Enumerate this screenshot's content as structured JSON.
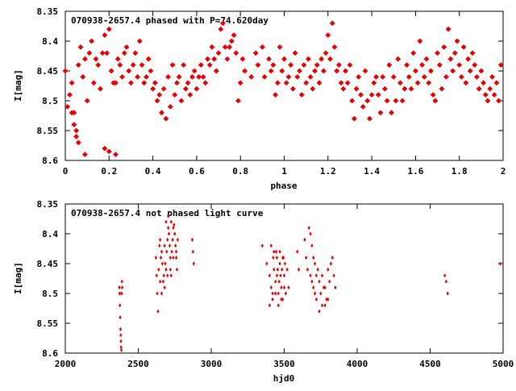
{
  "chart_data": [
    {
      "type": "scatter",
      "title": "070938-2657.4 phased with P=74.620day",
      "xlabel": "phase",
      "ylabel": "I[mag]",
      "xlim": [
        0,
        2
      ],
      "ylim": [
        8.6,
        8.35
      ],
      "y_inverted": true,
      "grid": false,
      "xticks": [
        "0",
        "0.2",
        "0.4",
        "0.6",
        "0.8",
        "1",
        "1.2",
        "1.4",
        "1.6",
        "1.8",
        "2"
      ],
      "yticks": [
        "8.35",
        "8.4",
        "8.45",
        "8.5",
        "8.55",
        "8.6"
      ],
      "marker_color": "#e60000",
      "marker": "star",
      "points": [
        [
          0.0,
          8.45
        ],
        [
          0.01,
          8.51
        ],
        [
          0.02,
          8.49
        ],
        [
          0.03,
          8.47
        ],
        [
          0.04,
          8.52
        ],
        [
          0.05,
          8.55
        ],
        [
          0.06,
          8.44
        ],
        [
          0.06,
          8.57
        ],
        [
          0.07,
          8.41
        ],
        [
          0.08,
          8.46
        ],
        [
          0.09,
          8.43
        ],
        [
          0.1,
          8.5
        ],
        [
          0.11,
          8.42
        ],
        [
          0.12,
          8.4
        ],
        [
          0.13,
          8.47
        ],
        [
          0.14,
          8.43
        ],
        [
          0.15,
          8.44
        ],
        [
          0.16,
          8.48
        ],
        [
          0.17,
          8.42
        ],
        [
          0.18,
          8.39
        ],
        [
          0.19,
          8.42
        ],
        [
          0.2,
          8.38
        ],
        [
          0.21,
          8.45
        ],
        [
          0.22,
          8.47
        ],
        [
          0.23,
          8.47
        ],
        [
          0.24,
          8.43
        ],
        [
          0.25,
          8.44
        ],
        [
          0.26,
          8.46
        ],
        [
          0.27,
          8.42
        ],
        [
          0.28,
          8.41
        ],
        [
          0.29,
          8.45
        ],
        [
          0.3,
          8.47
        ],
        [
          0.31,
          8.44
        ],
        [
          0.32,
          8.42
        ],
        [
          0.33,
          8.46
        ],
        [
          0.34,
          8.4
        ],
        [
          0.35,
          8.44
        ],
        [
          0.36,
          8.47
        ],
        [
          0.37,
          8.46
        ],
        [
          0.38,
          8.43
        ],
        [
          0.39,
          8.45
        ],
        [
          0.4,
          8.48
        ],
        [
          0.41,
          8.47
        ],
        [
          0.42,
          8.5
        ],
        [
          0.43,
          8.49
        ],
        [
          0.44,
          8.52
        ],
        [
          0.45,
          8.48
        ],
        [
          0.46,
          8.53
        ],
        [
          0.47,
          8.46
        ],
        [
          0.48,
          8.51
        ],
        [
          0.49,
          8.44
        ],
        [
          0.5,
          8.49
        ],
        [
          0.51,
          8.47
        ],
        [
          0.52,
          8.46
        ],
        [
          0.53,
          8.5
        ],
        [
          0.54,
          8.44
        ],
        [
          0.55,
          8.48
        ],
        [
          0.56,
          8.47
        ],
        [
          0.57,
          8.49
        ],
        [
          0.58,
          8.46
        ],
        [
          0.59,
          8.45
        ],
        [
          0.6,
          8.48
        ],
        [
          0.61,
          8.46
        ],
        [
          0.62,
          8.44
        ],
        [
          0.63,
          8.46
        ],
        [
          0.64,
          8.47
        ],
        [
          0.65,
          8.43
        ],
        [
          0.66,
          8.44
        ],
        [
          0.67,
          8.41
        ],
        [
          0.68,
          8.43
        ],
        [
          0.69,
          8.45
        ],
        [
          0.7,
          8.42
        ],
        [
          0.71,
          8.38
        ],
        [
          0.72,
          8.37
        ],
        [
          0.73,
          8.41
        ],
        [
          0.74,
          8.43
        ],
        [
          0.75,
          8.41
        ],
        [
          0.76,
          8.4
        ],
        [
          0.77,
          8.39
        ],
        [
          0.78,
          8.42
        ],
        [
          0.79,
          8.5
        ],
        [
          0.8,
          8.47
        ],
        [
          0.81,
          8.43
        ],
        [
          0.82,
          8.45
        ],
        [
          0.85,
          8.46
        ],
        [
          0.87,
          8.42
        ],
        [
          0.88,
          8.44
        ],
        [
          0.9,
          8.41
        ],
        [
          0.91,
          8.46
        ],
        [
          0.93,
          8.43
        ],
        [
          0.94,
          8.45
        ],
        [
          0.95,
          8.44
        ],
        [
          0.96,
          8.49
        ],
        [
          0.97,
          8.47
        ],
        [
          0.98,
          8.41
        ],
        [
          0.99,
          8.45
        ],
        [
          1.0,
          8.43
        ],
        [
          1.01,
          8.47
        ],
        [
          1.02,
          8.46
        ],
        [
          1.03,
          8.44
        ],
        [
          1.04,
          8.48
        ],
        [
          1.05,
          8.42
        ],
        [
          1.06,
          8.46
        ],
        [
          1.07,
          8.45
        ],
        [
          1.08,
          8.49
        ],
        [
          1.09,
          8.44
        ],
        [
          1.1,
          8.47
        ],
        [
          1.11,
          8.43
        ],
        [
          1.12,
          8.46
        ],
        [
          1.13,
          8.48
        ],
        [
          1.14,
          8.45
        ],
        [
          1.15,
          8.44
        ],
        [
          1.16,
          8.47
        ],
        [
          1.17,
          8.43
        ],
        [
          1.18,
          8.45
        ],
        [
          1.19,
          8.42
        ],
        [
          1.2,
          8.39
        ],
        [
          1.21,
          8.43
        ],
        [
          1.22,
          8.37
        ],
        [
          1.23,
          8.41
        ],
        [
          1.24,
          8.45
        ],
        [
          1.25,
          8.44
        ],
        [
          1.26,
          8.47
        ],
        [
          1.27,
          8.48
        ],
        [
          1.28,
          8.45
        ],
        [
          1.29,
          8.47
        ],
        [
          1.3,
          8.44
        ],
        [
          1.31,
          8.5
        ],
        [
          1.32,
          8.53
        ],
        [
          1.33,
          8.48
        ],
        [
          1.34,
          8.46
        ],
        [
          1.35,
          8.49
        ],
        [
          1.36,
          8.51
        ],
        [
          1.37,
          8.45
        ],
        [
          1.38,
          8.5
        ],
        [
          1.39,
          8.53
        ],
        [
          1.4,
          8.49
        ],
        [
          1.41,
          8.47
        ],
        [
          1.42,
          8.46
        ],
        [
          1.43,
          8.49
        ],
        [
          1.44,
          8.52
        ],
        [
          1.45,
          8.46
        ],
        [
          1.46,
          8.48
        ],
        [
          1.47,
          8.5
        ],
        [
          1.48,
          8.44
        ],
        [
          1.49,
          8.52
        ],
        [
          1.5,
          8.46
        ],
        [
          1.51,
          8.5
        ],
        [
          1.52,
          8.43
        ],
        [
          1.53,
          8.47
        ],
        [
          1.54,
          8.5
        ],
        [
          1.55,
          8.48
        ],
        [
          1.56,
          8.44
        ],
        [
          1.57,
          8.46
        ],
        [
          1.58,
          8.48
        ],
        [
          1.59,
          8.42
        ],
        [
          1.6,
          8.45
        ],
        [
          1.61,
          8.47
        ],
        [
          1.62,
          8.4
        ],
        [
          1.63,
          8.44
        ],
        [
          1.64,
          8.46
        ],
        [
          1.65,
          8.43
        ],
        [
          1.66,
          8.47
        ],
        [
          1.67,
          8.45
        ],
        [
          1.68,
          8.49
        ],
        [
          1.69,
          8.5
        ],
        [
          1.7,
          8.42
        ],
        [
          1.71,
          8.44
        ],
        [
          1.72,
          8.48
        ],
        [
          1.73,
          8.41
        ],
        [
          1.74,
          8.46
        ],
        [
          1.75,
          8.38
        ],
        [
          1.76,
          8.43
        ],
        [
          1.77,
          8.45
        ],
        [
          1.78,
          8.42
        ],
        [
          1.79,
          8.4
        ],
        [
          1.8,
          8.44
        ],
        [
          1.81,
          8.46
        ],
        [
          1.82,
          8.41
        ],
        [
          1.83,
          8.47
        ],
        [
          1.84,
          8.43
        ],
        [
          1.85,
          8.45
        ],
        [
          1.86,
          8.42
        ],
        [
          1.87,
          8.44
        ],
        [
          1.88,
          8.46
        ],
        [
          1.89,
          8.48
        ],
        [
          1.9,
          8.45
        ],
        [
          1.91,
          8.47
        ],
        [
          1.92,
          8.49
        ],
        [
          1.93,
          8.5
        ],
        [
          1.94,
          8.48
        ],
        [
          1.95,
          8.46
        ],
        [
          1.96,
          8.49
        ],
        [
          1.97,
          8.47
        ],
        [
          1.98,
          8.5
        ],
        [
          1.99,
          8.44
        ],
        [
          0.03,
          8.52
        ],
        [
          0.04,
          8.54
        ],
        [
          0.05,
          8.56
        ],
        [
          0.09,
          8.59
        ],
        [
          0.18,
          8.58
        ],
        [
          0.2,
          8.585
        ],
        [
          0.23,
          8.59
        ]
      ]
    },
    {
      "type": "scatter",
      "title": "070938-2657.4 not phased light curve",
      "xlabel": "hjd0",
      "ylabel": "I[mag]",
      "xlim": [
        2000,
        5000
      ],
      "ylim": [
        8.6,
        8.35
      ],
      "y_inverted": true,
      "grid": false,
      "xticks": [
        "2000",
        "2500",
        "3000",
        "3500",
        "4000",
        "4500",
        "5000"
      ],
      "yticks": [
        "8.35",
        "8.4",
        "8.45",
        "8.5",
        "8.55",
        "8.6"
      ],
      "marker_color": "#e60000",
      "marker": "diamond",
      "points": [
        [
          2370,
          8.49
        ],
        [
          2372,
          8.5
        ],
        [
          2374,
          8.52
        ],
        [
          2376,
          8.54
        ],
        [
          2378,
          8.56
        ],
        [
          2380,
          8.57
        ],
        [
          2381,
          8.58
        ],
        [
          2382,
          8.59
        ],
        [
          2384,
          8.595
        ],
        [
          2386,
          8.5
        ],
        [
          2388,
          8.48
        ],
        [
          2390,
          8.49
        ],
        [
          2620,
          8.44
        ],
        [
          2625,
          8.47
        ],
        [
          2630,
          8.5
        ],
        [
          2635,
          8.53
        ],
        [
          2640,
          8.46
        ],
        [
          2645,
          8.42
        ],
        [
          2650,
          8.41
        ],
        [
          2655,
          8.44
        ],
        [
          2660,
          8.43
        ],
        [
          2665,
          8.45
        ],
        [
          2670,
          8.48
        ],
        [
          2675,
          8.47
        ],
        [
          2680,
          8.42
        ],
        [
          2685,
          8.45
        ],
        [
          2690,
          8.46
        ],
        [
          2695,
          8.43
        ],
        [
          2700,
          8.41
        ],
        [
          2705,
          8.39
        ],
        [
          2710,
          8.4
        ],
        [
          2715,
          8.42
        ],
        [
          2720,
          8.44
        ],
        [
          2725,
          8.47
        ],
        [
          2730,
          8.43
        ],
        [
          2735,
          8.41
        ],
        [
          2740,
          8.39
        ],
        [
          2745,
          8.385
        ],
        [
          2750,
          8.4
        ],
        [
          2755,
          8.42
        ],
        [
          2760,
          8.44
        ],
        [
          2765,
          8.46
        ],
        [
          2770,
          8.41
        ],
        [
          2650,
          8.48
        ],
        [
          2660,
          8.5
        ],
        [
          2680,
          8.49
        ],
        [
          2700,
          8.47
        ],
        [
          2720,
          8.46
        ],
        [
          2740,
          8.44
        ],
        [
          2760,
          8.43
        ],
        [
          2690,
          8.38
        ],
        [
          2705,
          8.37
        ],
        [
          2725,
          8.38
        ],
        [
          2870,
          8.41
        ],
        [
          2875,
          8.43
        ],
        [
          2880,
          8.45
        ],
        [
          3350,
          8.42
        ],
        [
          3380,
          8.45
        ],
        [
          3400,
          8.47
        ],
        [
          3410,
          8.49
        ],
        [
          3420,
          8.5
        ],
        [
          3425,
          8.44
        ],
        [
          3430,
          8.46
        ],
        [
          3440,
          8.48
        ],
        [
          3445,
          8.43
        ],
        [
          3450,
          8.47
        ],
        [
          3455,
          8.46
        ],
        [
          3460,
          8.5
        ],
        [
          3465,
          8.48
        ],
        [
          3470,
          8.45
        ],
        [
          3475,
          8.47
        ],
        [
          3480,
          8.49
        ],
        [
          3485,
          8.46
        ],
        [
          3490,
          8.51
        ],
        [
          3495,
          8.44
        ],
        [
          3500,
          8.47
        ],
        [
          3505,
          8.45
        ],
        [
          3510,
          8.5
        ],
        [
          3520,
          8.46
        ],
        [
          3530,
          8.49
        ],
        [
          3400,
          8.52
        ],
        [
          3420,
          8.51
        ],
        [
          3440,
          8.5
        ],
        [
          3460,
          8.52
        ],
        [
          3480,
          8.51
        ],
        [
          3500,
          8.49
        ],
        [
          3410,
          8.42
        ],
        [
          3430,
          8.43
        ],
        [
          3450,
          8.44
        ],
        [
          3470,
          8.43
        ],
        [
          3490,
          8.44
        ],
        [
          3590,
          8.43
        ],
        [
          3600,
          8.46
        ],
        [
          3640,
          8.41
        ],
        [
          3650,
          8.44
        ],
        [
          3660,
          8.46
        ],
        [
          3670,
          8.39
        ],
        [
          3680,
          8.4
        ],
        [
          3690,
          8.42
        ],
        [
          3700,
          8.44
        ],
        [
          3710,
          8.45
        ],
        [
          3720,
          8.47
        ],
        [
          3730,
          8.46
        ],
        [
          3740,
          8.48
        ],
        [
          3750,
          8.5
        ],
        [
          3760,
          8.47
        ],
        [
          3770,
          8.49
        ],
        [
          3780,
          8.52
        ],
        [
          3790,
          8.51
        ],
        [
          3800,
          8.46
        ],
        [
          3810,
          8.48
        ],
        [
          3820,
          8.45
        ],
        [
          3830,
          8.44
        ],
        [
          3840,
          8.47
        ],
        [
          3850,
          8.49
        ],
        [
          3680,
          8.47
        ],
        [
          3700,
          8.49
        ],
        [
          3720,
          8.51
        ],
        [
          3740,
          8.53
        ],
        [
          3760,
          8.52
        ],
        [
          3780,
          8.49
        ],
        [
          3800,
          8.51
        ],
        [
          3690,
          8.48
        ],
        [
          3710,
          8.5
        ],
        [
          4600,
          8.47
        ],
        [
          4610,
          8.48
        ],
        [
          4620,
          8.5
        ],
        [
          4980,
          8.45
        ]
      ]
    }
  ]
}
